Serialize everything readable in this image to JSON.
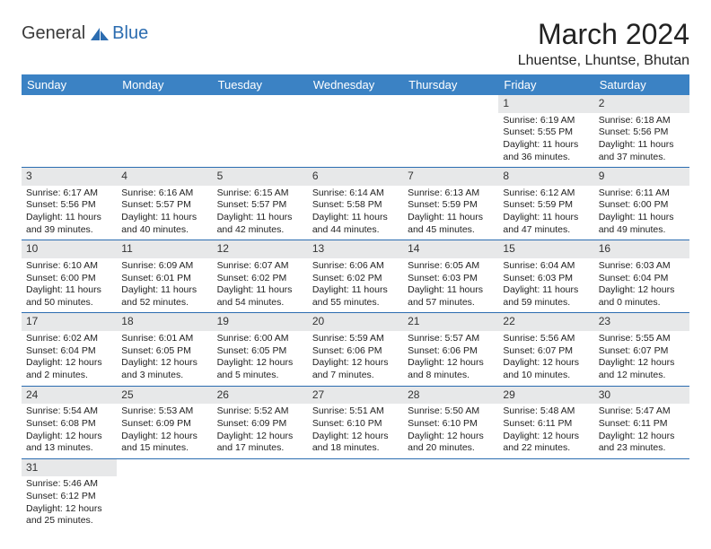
{
  "logo": {
    "part1": "General",
    "part2": "Blue"
  },
  "title": "March 2024",
  "location": "Lhuentse, Lhuntse, Bhutan",
  "header_bg": "#3b82c4",
  "header_fg": "#ffffff",
  "border_color": "#2b6cb0",
  "daynum_bg": "#e7e8e9",
  "day_headers": [
    "Sunday",
    "Monday",
    "Tuesday",
    "Wednesday",
    "Thursday",
    "Friday",
    "Saturday"
  ],
  "weeks": [
    [
      null,
      null,
      null,
      null,
      null,
      {
        "n": "1",
        "sr": "Sunrise: 6:19 AM",
        "ss": "Sunset: 5:55 PM",
        "dl1": "Daylight: 11 hours",
        "dl2": "and 36 minutes."
      },
      {
        "n": "2",
        "sr": "Sunrise: 6:18 AM",
        "ss": "Sunset: 5:56 PM",
        "dl1": "Daylight: 11 hours",
        "dl2": "and 37 minutes."
      }
    ],
    [
      {
        "n": "3",
        "sr": "Sunrise: 6:17 AM",
        "ss": "Sunset: 5:56 PM",
        "dl1": "Daylight: 11 hours",
        "dl2": "and 39 minutes."
      },
      {
        "n": "4",
        "sr": "Sunrise: 6:16 AM",
        "ss": "Sunset: 5:57 PM",
        "dl1": "Daylight: 11 hours",
        "dl2": "and 40 minutes."
      },
      {
        "n": "5",
        "sr": "Sunrise: 6:15 AM",
        "ss": "Sunset: 5:57 PM",
        "dl1": "Daylight: 11 hours",
        "dl2": "and 42 minutes."
      },
      {
        "n": "6",
        "sr": "Sunrise: 6:14 AM",
        "ss": "Sunset: 5:58 PM",
        "dl1": "Daylight: 11 hours",
        "dl2": "and 44 minutes."
      },
      {
        "n": "7",
        "sr": "Sunrise: 6:13 AM",
        "ss": "Sunset: 5:59 PM",
        "dl1": "Daylight: 11 hours",
        "dl2": "and 45 minutes."
      },
      {
        "n": "8",
        "sr": "Sunrise: 6:12 AM",
        "ss": "Sunset: 5:59 PM",
        "dl1": "Daylight: 11 hours",
        "dl2": "and 47 minutes."
      },
      {
        "n": "9",
        "sr": "Sunrise: 6:11 AM",
        "ss": "Sunset: 6:00 PM",
        "dl1": "Daylight: 11 hours",
        "dl2": "and 49 minutes."
      }
    ],
    [
      {
        "n": "10",
        "sr": "Sunrise: 6:10 AM",
        "ss": "Sunset: 6:00 PM",
        "dl1": "Daylight: 11 hours",
        "dl2": "and 50 minutes."
      },
      {
        "n": "11",
        "sr": "Sunrise: 6:09 AM",
        "ss": "Sunset: 6:01 PM",
        "dl1": "Daylight: 11 hours",
        "dl2": "and 52 minutes."
      },
      {
        "n": "12",
        "sr": "Sunrise: 6:07 AM",
        "ss": "Sunset: 6:02 PM",
        "dl1": "Daylight: 11 hours",
        "dl2": "and 54 minutes."
      },
      {
        "n": "13",
        "sr": "Sunrise: 6:06 AM",
        "ss": "Sunset: 6:02 PM",
        "dl1": "Daylight: 11 hours",
        "dl2": "and 55 minutes."
      },
      {
        "n": "14",
        "sr": "Sunrise: 6:05 AM",
        "ss": "Sunset: 6:03 PM",
        "dl1": "Daylight: 11 hours",
        "dl2": "and 57 minutes."
      },
      {
        "n": "15",
        "sr": "Sunrise: 6:04 AM",
        "ss": "Sunset: 6:03 PM",
        "dl1": "Daylight: 11 hours",
        "dl2": "and 59 minutes."
      },
      {
        "n": "16",
        "sr": "Sunrise: 6:03 AM",
        "ss": "Sunset: 6:04 PM",
        "dl1": "Daylight: 12 hours",
        "dl2": "and 0 minutes."
      }
    ],
    [
      {
        "n": "17",
        "sr": "Sunrise: 6:02 AM",
        "ss": "Sunset: 6:04 PM",
        "dl1": "Daylight: 12 hours",
        "dl2": "and 2 minutes."
      },
      {
        "n": "18",
        "sr": "Sunrise: 6:01 AM",
        "ss": "Sunset: 6:05 PM",
        "dl1": "Daylight: 12 hours",
        "dl2": "and 3 minutes."
      },
      {
        "n": "19",
        "sr": "Sunrise: 6:00 AM",
        "ss": "Sunset: 6:05 PM",
        "dl1": "Daylight: 12 hours",
        "dl2": "and 5 minutes."
      },
      {
        "n": "20",
        "sr": "Sunrise: 5:59 AM",
        "ss": "Sunset: 6:06 PM",
        "dl1": "Daylight: 12 hours",
        "dl2": "and 7 minutes."
      },
      {
        "n": "21",
        "sr": "Sunrise: 5:57 AM",
        "ss": "Sunset: 6:06 PM",
        "dl1": "Daylight: 12 hours",
        "dl2": "and 8 minutes."
      },
      {
        "n": "22",
        "sr": "Sunrise: 5:56 AM",
        "ss": "Sunset: 6:07 PM",
        "dl1": "Daylight: 12 hours",
        "dl2": "and 10 minutes."
      },
      {
        "n": "23",
        "sr": "Sunrise: 5:55 AM",
        "ss": "Sunset: 6:07 PM",
        "dl1": "Daylight: 12 hours",
        "dl2": "and 12 minutes."
      }
    ],
    [
      {
        "n": "24",
        "sr": "Sunrise: 5:54 AM",
        "ss": "Sunset: 6:08 PM",
        "dl1": "Daylight: 12 hours",
        "dl2": "and 13 minutes."
      },
      {
        "n": "25",
        "sr": "Sunrise: 5:53 AM",
        "ss": "Sunset: 6:09 PM",
        "dl1": "Daylight: 12 hours",
        "dl2": "and 15 minutes."
      },
      {
        "n": "26",
        "sr": "Sunrise: 5:52 AM",
        "ss": "Sunset: 6:09 PM",
        "dl1": "Daylight: 12 hours",
        "dl2": "and 17 minutes."
      },
      {
        "n": "27",
        "sr": "Sunrise: 5:51 AM",
        "ss": "Sunset: 6:10 PM",
        "dl1": "Daylight: 12 hours",
        "dl2": "and 18 minutes."
      },
      {
        "n": "28",
        "sr": "Sunrise: 5:50 AM",
        "ss": "Sunset: 6:10 PM",
        "dl1": "Daylight: 12 hours",
        "dl2": "and 20 minutes."
      },
      {
        "n": "29",
        "sr": "Sunrise: 5:48 AM",
        "ss": "Sunset: 6:11 PM",
        "dl1": "Daylight: 12 hours",
        "dl2": "and 22 minutes."
      },
      {
        "n": "30",
        "sr": "Sunrise: 5:47 AM",
        "ss": "Sunset: 6:11 PM",
        "dl1": "Daylight: 12 hours",
        "dl2": "and 23 minutes."
      }
    ],
    [
      {
        "n": "31",
        "sr": "Sunrise: 5:46 AM",
        "ss": "Sunset: 6:12 PM",
        "dl1": "Daylight: 12 hours",
        "dl2": "and 25 minutes."
      },
      null,
      null,
      null,
      null,
      null,
      null
    ]
  ]
}
